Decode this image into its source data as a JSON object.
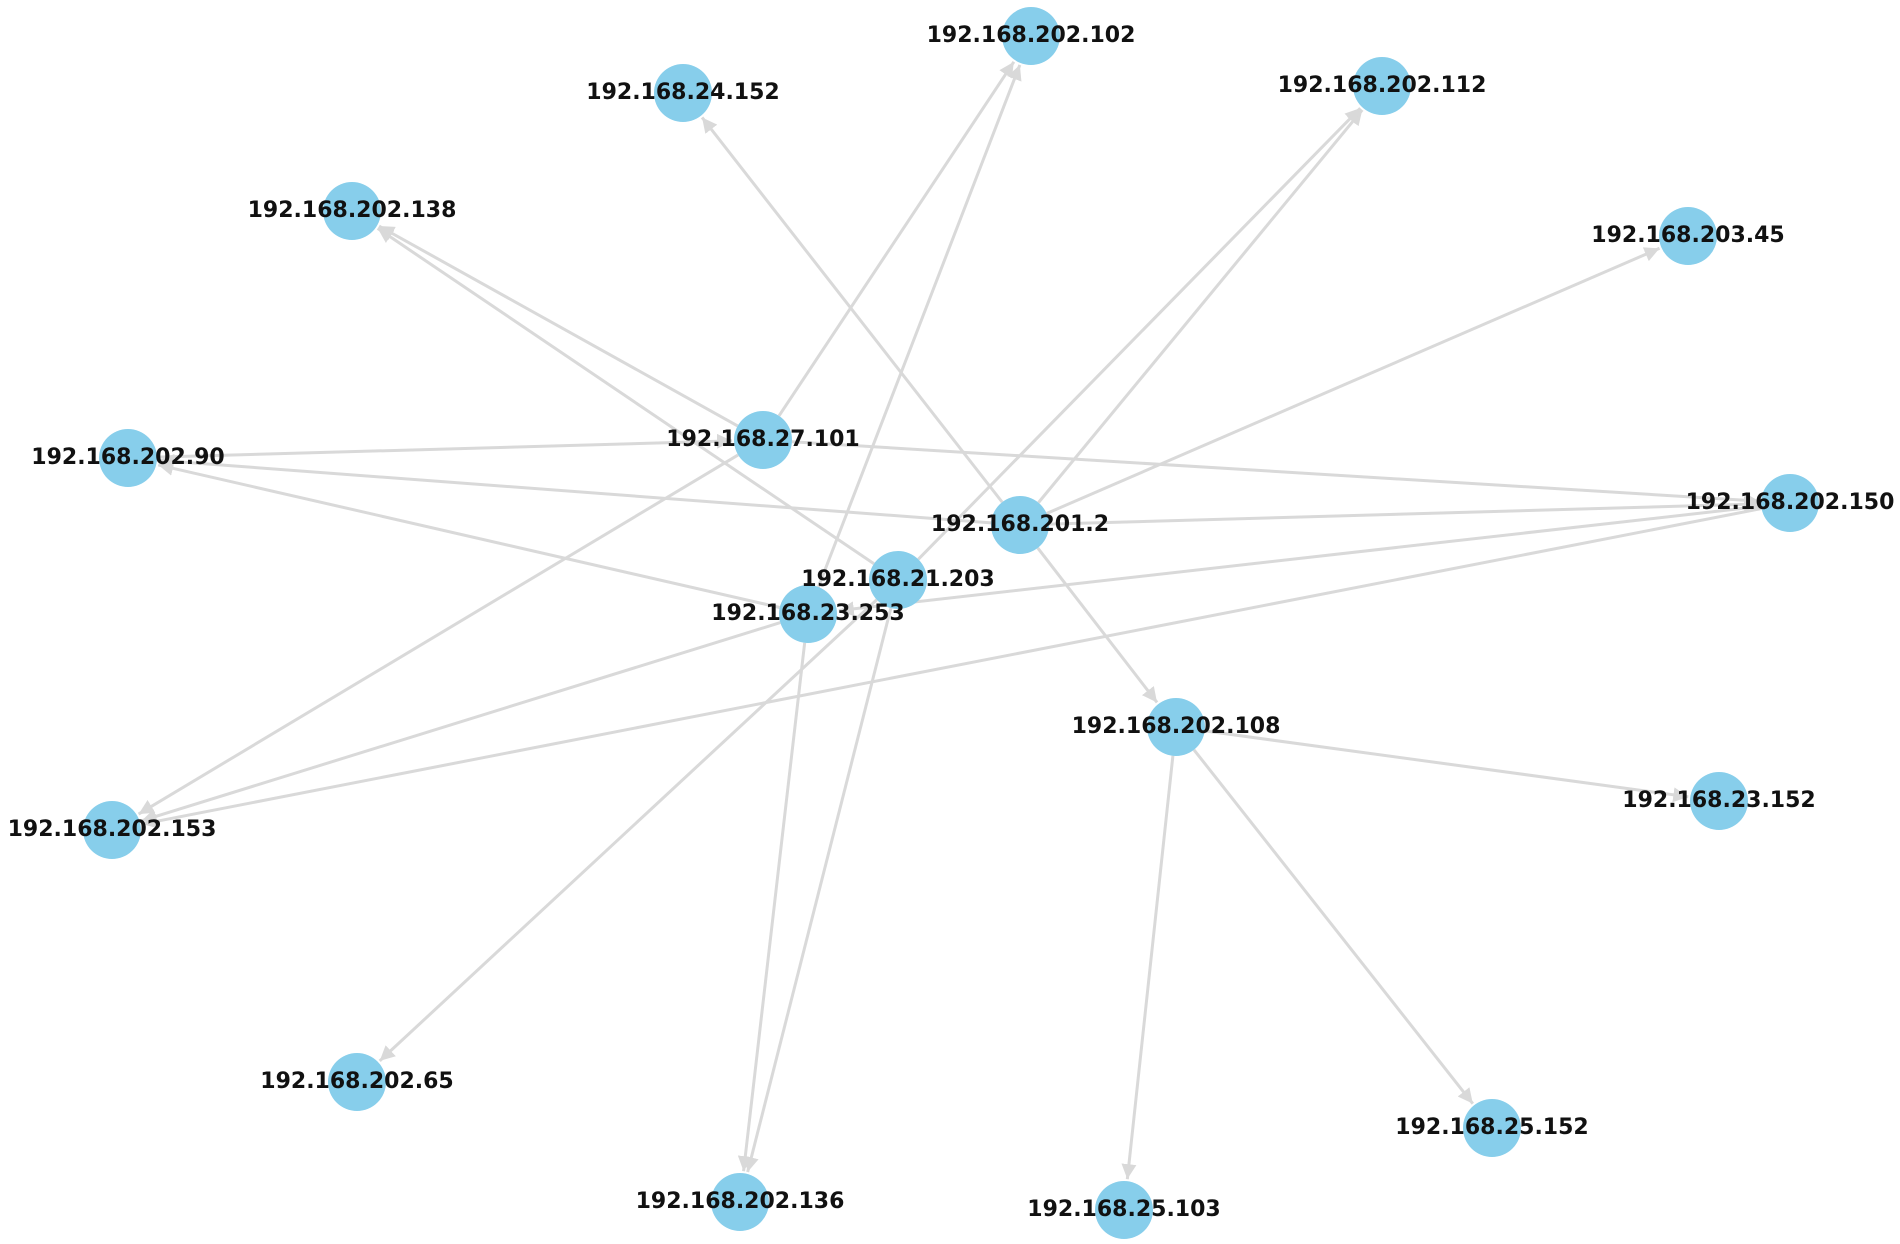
{
  "graph": {
    "directed": true,
    "node_color": "#87ceeb",
    "edge_color": "#d9d9d9",
    "nodes": [
      {
        "id": "n201_2",
        "label": "192.168.201.2"
      },
      {
        "id": "n27_101",
        "label": "192.168.27.101"
      },
      {
        "id": "n21_203",
        "label": "192.168.21.203"
      },
      {
        "id": "n23_253",
        "label": "192.168.23.253"
      },
      {
        "id": "n202_108",
        "label": "192.168.202.108"
      },
      {
        "id": "n202_102",
        "label": "192.168.202.102"
      },
      {
        "id": "n24_152",
        "label": "192.168.24.152"
      },
      {
        "id": "n202_112",
        "label": "192.168.202.112"
      },
      {
        "id": "n202_138",
        "label": "192.168.202.138"
      },
      {
        "id": "n203_45",
        "label": "192.168.203.45"
      },
      {
        "id": "n202_90",
        "label": "192.168.202.90"
      },
      {
        "id": "n202_150",
        "label": "192.168.202.150"
      },
      {
        "id": "n202_153",
        "label": "192.168.202.153"
      },
      {
        "id": "n23_152",
        "label": "192.168.23.152"
      },
      {
        "id": "n202_65",
        "label": "192.168.202.65"
      },
      {
        "id": "n25_152",
        "label": "192.168.25.152"
      },
      {
        "id": "n202_136",
        "label": "192.168.202.136"
      },
      {
        "id": "n25_103",
        "label": "192.168.25.103"
      }
    ],
    "edges": [
      {
        "source": "n27_101",
        "target": "n202_102"
      },
      {
        "source": "n27_101",
        "target": "n202_138"
      },
      {
        "source": "n27_101",
        "target": "n202_150"
      },
      {
        "source": "n27_101",
        "target": "n202_153"
      },
      {
        "source": "n202_90",
        "target": "n27_101"
      },
      {
        "source": "n201_2",
        "target": "n24_152"
      },
      {
        "source": "n201_2",
        "target": "n202_112"
      },
      {
        "source": "n201_2",
        "target": "n203_45"
      },
      {
        "source": "n201_2",
        "target": "n202_108"
      },
      {
        "source": "n201_2",
        "target": "n202_90"
      },
      {
        "source": "n201_2",
        "target": "n202_150"
      },
      {
        "source": "n21_203",
        "target": "n202_138"
      },
      {
        "source": "n21_203",
        "target": "n202_112"
      },
      {
        "source": "n21_203",
        "target": "n202_136"
      },
      {
        "source": "n21_203",
        "target": "n202_65"
      },
      {
        "source": "n23_253",
        "target": "n202_102"
      },
      {
        "source": "n23_253",
        "target": "n202_90"
      },
      {
        "source": "n23_253",
        "target": "n202_153"
      },
      {
        "source": "n23_253",
        "target": "n202_136"
      },
      {
        "source": "n202_150",
        "target": "n23_253"
      },
      {
        "source": "n202_150",
        "target": "n202_153"
      },
      {
        "source": "n202_108",
        "target": "n23_152"
      },
      {
        "source": "n202_108",
        "target": "n25_152"
      },
      {
        "source": "n202_108",
        "target": "n25_103"
      }
    ]
  }
}
